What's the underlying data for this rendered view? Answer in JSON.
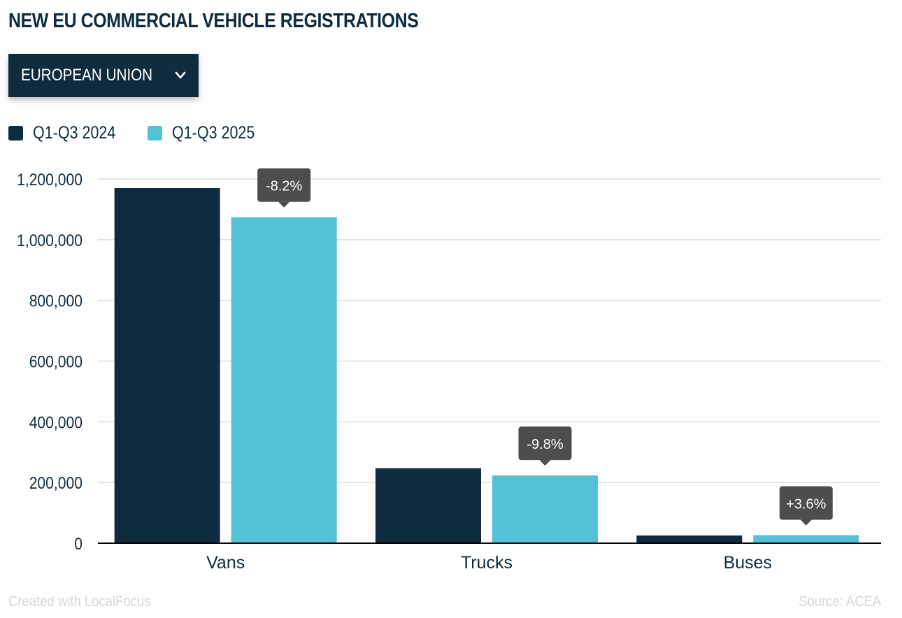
{
  "header": {
    "title": "NEW EU COMMERCIAL VEHICLE REGISTRATIONS"
  },
  "region_selector": {
    "selected": "EUROPEAN UNION",
    "icon": "chevron-down-icon"
  },
  "legend": [
    {
      "label": "Q1-Q3 2024",
      "color": "#0f2c3f"
    },
    {
      "label": "Q1-Q3 2025",
      "color": "#55c1d6"
    }
  ],
  "chart_data": {
    "type": "bar",
    "title": "NEW EU COMMERCIAL VEHICLE REGISTRATIONS",
    "xlabel": "",
    "ylabel": "",
    "categories": [
      "Vans",
      "Trucks",
      "Buses"
    ],
    "series": [
      {
        "name": "Q1-Q3 2024",
        "color": "#0f2c3f",
        "values": [
          1170000,
          247000,
          25500
        ]
      },
      {
        "name": "Q1-Q3 2025",
        "color": "#55c1d6",
        "values": [
          1074000,
          223000,
          26400
        ]
      }
    ],
    "annotations": [
      {
        "category": "Vans",
        "series": "Q1-Q3 2025",
        "text": "-8.2%"
      },
      {
        "category": "Trucks",
        "series": "Q1-Q3 2025",
        "text": "-9.8%"
      },
      {
        "category": "Buses",
        "series": "Q1-Q3 2025",
        "text": "+3.6%"
      }
    ],
    "yticks": [
      0,
      200000,
      400000,
      600000,
      800000,
      1000000,
      1200000
    ],
    "ytick_labels": [
      "0",
      "200,000",
      "400,000",
      "600,000",
      "800,000",
      "1,000,000",
      "1,200,000"
    ],
    "ylim": [
      0,
      1200000
    ],
    "grid": true,
    "legend_position": "top-left"
  },
  "footer": {
    "credit": "Created with LocalFocus",
    "source": "Source:  ACEA"
  },
  "colors": {
    "primary": "#0f2c3f",
    "accent": "#55c1d6",
    "annotation_bg": "#4d4d4d",
    "grid": "#dddddd",
    "footer_text": "#d6d6d6"
  }
}
